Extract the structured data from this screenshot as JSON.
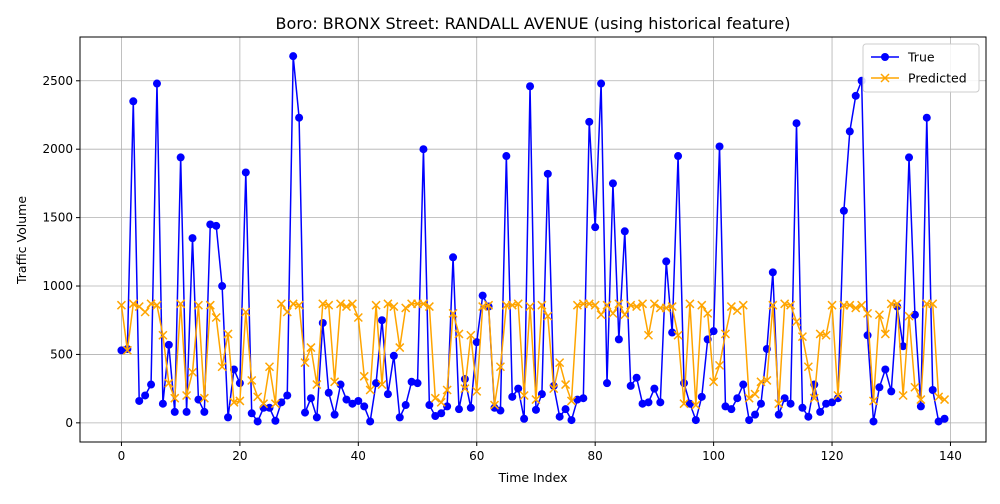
{
  "chart_data": {
    "type": "line",
    "title": "Boro: BRONX Street: RANDALL AVENUE (using historical feature)",
    "xlabel": "Time Index",
    "ylabel": "Traffic Volume",
    "xlim": [
      -7,
      146
    ],
    "ylim": [
      -140,
      2820
    ],
    "xticks": [
      0,
      20,
      40,
      60,
      80,
      100,
      120,
      140
    ],
    "yticks": [
      0,
      500,
      1000,
      1500,
      2000,
      2500
    ],
    "grid": true,
    "legend": "top-right",
    "series": [
      {
        "name": "True",
        "color": "#0000ff",
        "marker": "circle",
        "values": [
          530,
          540,
          2350,
          160,
          200,
          280,
          2480,
          140,
          570,
          80,
          1940,
          80,
          1350,
          170,
          80,
          1450,
          1440,
          1000,
          40,
          390,
          290,
          1830,
          70,
          10,
          110,
          110,
          15,
          150,
          200,
          2680,
          2230,
          75,
          180,
          40,
          730,
          220,
          60,
          280,
          170,
          140,
          160,
          120,
          10,
          290,
          750,
          210,
          490,
          40,
          130,
          300,
          290,
          2000,
          130,
          50,
          70,
          120,
          1210,
          100,
          320,
          110,
          590,
          930,
          850,
          110,
          90,
          1950,
          190,
          250,
          30,
          2460,
          95,
          210,
          1820,
          270,
          45,
          100,
          20,
          170,
          180,
          2200,
          1430,
          2480,
          290,
          1750,
          610,
          1400,
          270,
          330,
          140,
          150,
          250,
          150,
          1180,
          660,
          1950,
          290,
          140,
          20,
          190,
          610,
          670,
          2020,
          120,
          100,
          180,
          280,
          20,
          60,
          140,
          540,
          1100,
          60,
          180,
          140,
          2190,
          110,
          45,
          280,
          80,
          140,
          150,
          180,
          1550,
          2130,
          2390,
          2500,
          640,
          10,
          260,
          390,
          230,
          850,
          560,
          1940,
          790,
          120,
          2230,
          240,
          10,
          30
        ]
      },
      {
        "name": "Predicted",
        "color": "#ffa500",
        "marker": "x",
        "values": [
          860,
          530,
          870,
          850,
          810,
          870,
          860,
          640,
          290,
          180,
          870,
          200,
          370,
          860,
          180,
          860,
          770,
          410,
          650,
          150,
          160,
          810,
          310,
          190,
          140,
          410,
          140,
          870,
          810,
          870,
          860,
          440,
          550,
          280,
          870,
          860,
          300,
          870,
          850,
          870,
          770,
          340,
          240,
          860,
          280,
          870,
          850,
          550,
          840,
          870,
          870,
          870,
          850,
          180,
          150,
          240,
          800,
          650,
          250,
          640,
          230,
          850,
          860,
          130,
          410,
          860,
          860,
          870,
          200,
          850,
          170,
          860,
          780,
          250,
          440,
          280,
          160,
          860,
          870,
          870,
          860,
          790,
          860,
          800,
          870,
          790,
          860,
          850,
          870,
          640,
          870,
          840,
          840,
          850,
          640,
          140,
          870,
          130,
          860,
          800,
          300,
          420,
          650,
          850,
          820,
          860,
          180,
          210,
          300,
          310,
          860,
          140,
          870,
          860,
          740,
          630,
          410,
          180,
          650,
          640,
          860,
          200,
          860,
          860,
          840,
          860,
          800,
          160,
          790,
          650,
          870,
          870,
          200,
          780,
          260,
          170,
          870,
          870,
          190,
          170
        ]
      }
    ]
  }
}
